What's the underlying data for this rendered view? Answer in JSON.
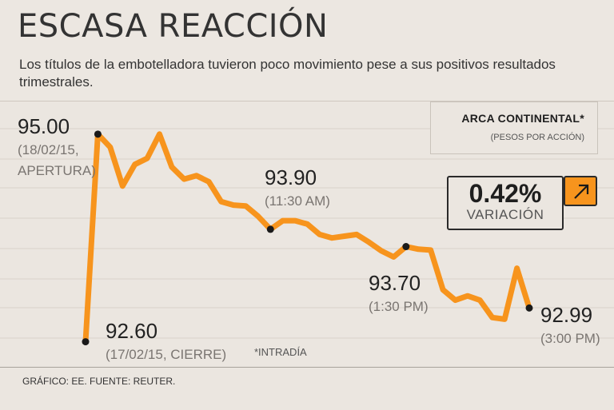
{
  "header": {
    "title": "ESCASA REACCIÓN",
    "subtitle": "Los títulos de la embotelladora tuvieron poco movimiento pese a sus positivos resultados trimestrales."
  },
  "legend": {
    "company": "ARCA CONTINENTAL*",
    "units": "(PESOS POR ACCIÓN)"
  },
  "variation": {
    "value": "0.42%",
    "label": "VARIACIÓN",
    "direction_icon": "arrow-up-right-icon"
  },
  "footnote": "*INTRADÍA",
  "footer": "GRÁFICO: EE. FUENTE: REUTER.",
  "colors": {
    "line": "#f7941d",
    "marker": "#1a1a1a",
    "background": "#ebe6e0",
    "grid": "#d8d2ca"
  },
  "chart_data": {
    "type": "line",
    "title": "ESCASA REACCIÓN",
    "ylim": [
      92.55,
      95.1
    ],
    "series": [
      {
        "name": "ARCA CONTINENTAL",
        "points": [
          {
            "x": 0,
            "y": 92.6
          },
          {
            "x": 1,
            "y": 95.0
          },
          {
            "x": 2,
            "y": 94.85
          },
          {
            "x": 3,
            "y": 94.4
          },
          {
            "x": 4,
            "y": 94.65
          },
          {
            "x": 5,
            "y": 94.72
          },
          {
            "x": 6,
            "y": 95.0
          },
          {
            "x": 7,
            "y": 94.62
          },
          {
            "x": 8,
            "y": 94.48
          },
          {
            "x": 9,
            "y": 94.52
          },
          {
            "x": 10,
            "y": 94.45
          },
          {
            "x": 11,
            "y": 94.22
          },
          {
            "x": 12,
            "y": 94.18
          },
          {
            "x": 13,
            "y": 94.17
          },
          {
            "x": 14,
            "y": 94.05
          },
          {
            "x": 15,
            "y": 93.9
          },
          {
            "x": 16,
            "y": 94.0
          },
          {
            "x": 17,
            "y": 94.0
          },
          {
            "x": 18,
            "y": 93.96
          },
          {
            "x": 19,
            "y": 93.84
          },
          {
            "x": 20,
            "y": 93.8
          },
          {
            "x": 21,
            "y": 93.82
          },
          {
            "x": 22,
            "y": 93.84
          },
          {
            "x": 23,
            "y": 93.75
          },
          {
            "x": 24,
            "y": 93.65
          },
          {
            "x": 25,
            "y": 93.58
          },
          {
            "x": 26,
            "y": 93.7
          },
          {
            "x": 27,
            "y": 93.67
          },
          {
            "x": 28,
            "y": 93.66
          },
          {
            "x": 29,
            "y": 93.2
          },
          {
            "x": 30,
            "y": 93.08
          },
          {
            "x": 31,
            "y": 93.13
          },
          {
            "x": 32,
            "y": 93.08
          },
          {
            "x": 33,
            "y": 92.88
          },
          {
            "x": 34,
            "y": 92.86
          },
          {
            "x": 35,
            "y": 93.45
          },
          {
            "x": 36,
            "y": 92.99
          }
        ]
      }
    ],
    "annotations": [
      {
        "point_index": 1,
        "value": "95.00",
        "sub": "(18/02/15,",
        "sub2": "APERTURA)"
      },
      {
        "point_index": 15,
        "value": "93.90",
        "sub": "(11:30 AM)"
      },
      {
        "point_index": 26,
        "value": "93.70",
        "sub": "(1:30 PM)"
      },
      {
        "point_index": 0,
        "value": "92.60",
        "sub": "(17/02/15, CIERRE)"
      },
      {
        "point_index": 36,
        "value": "92.99",
        "sub": "(3:00 PM)"
      }
    ]
  }
}
